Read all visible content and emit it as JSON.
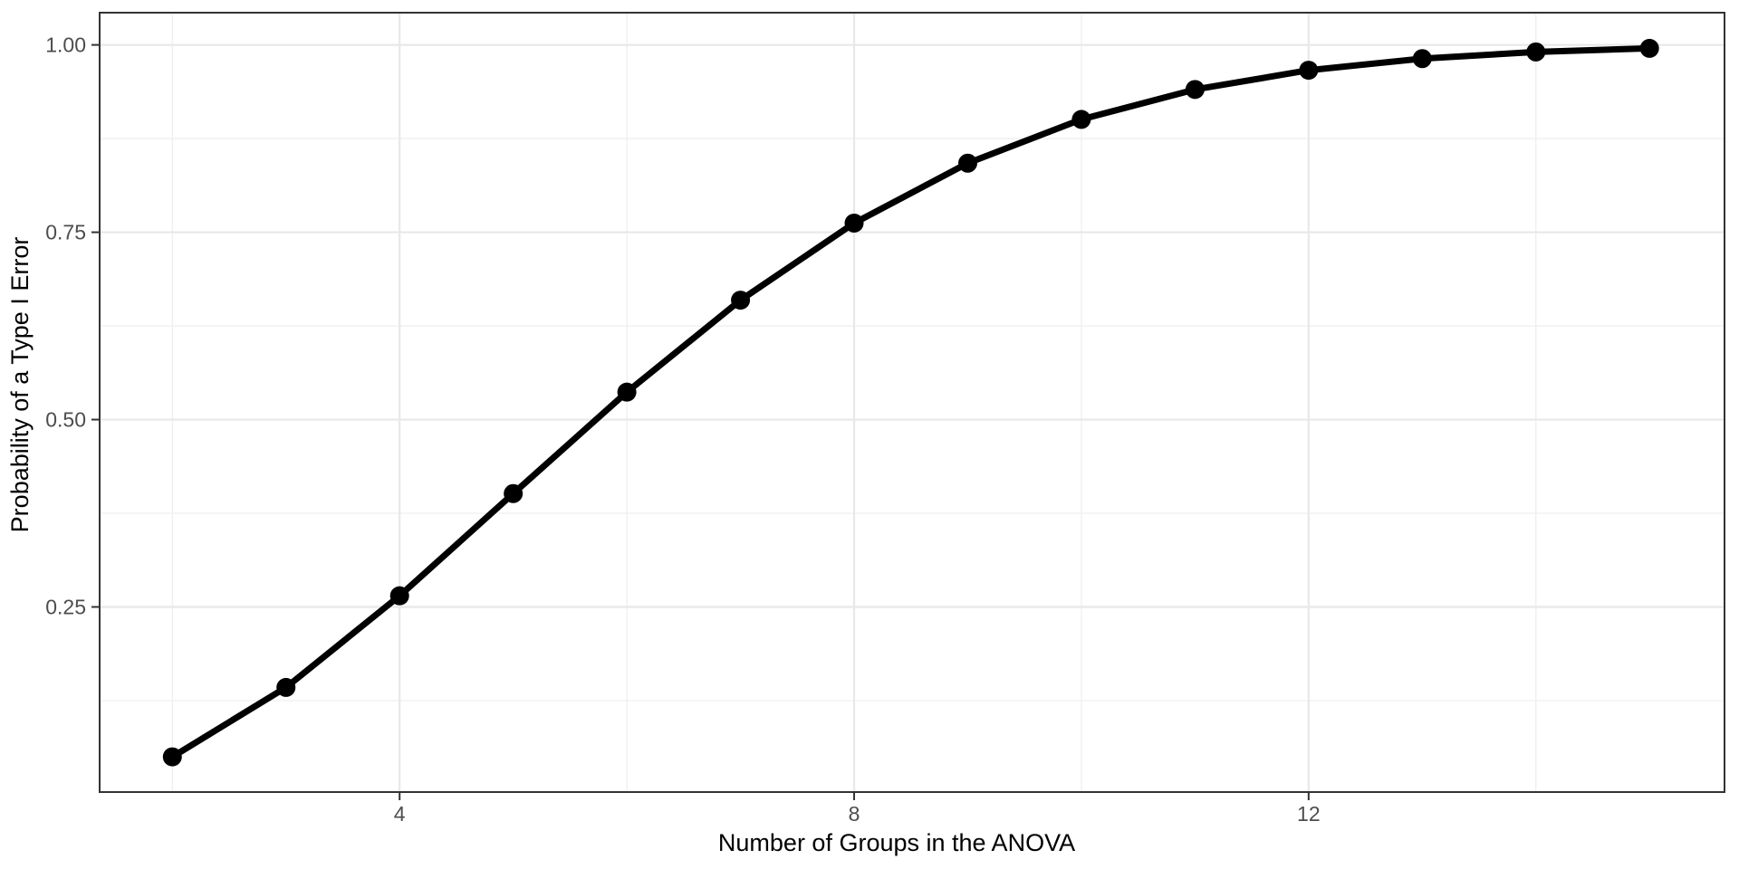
{
  "chart_data": {
    "type": "line",
    "title": "",
    "xlabel": "Number of Groups in the ANOVA",
    "ylabel": "Probability of a Type I Error",
    "x": [
      2,
      3,
      4,
      5,
      6,
      7,
      8,
      9,
      10,
      11,
      12,
      13,
      14,
      15
    ],
    "y": [
      0.05,
      0.1426,
      0.2649,
      0.4013,
      0.5367,
      0.6594,
      0.7622,
      0.8422,
      0.9006,
      0.9405,
      0.9662,
      0.9817,
      0.9906,
      0.9954
    ],
    "x_ticks": [
      4,
      8,
      12
    ],
    "x_tick_labels": [
      "4",
      "8",
      "12"
    ],
    "x_minor": [
      2,
      6,
      10,
      14
    ],
    "y_ticks": [
      0.25,
      0.5,
      0.75,
      1.0
    ],
    "y_tick_labels": [
      "0.25",
      "0.50",
      "0.75",
      "1.00"
    ],
    "y_minor": [
      0.125,
      0.375,
      0.625,
      0.875
    ],
    "xlim": [
      1.36,
      15.66
    ],
    "ylim": [
      0.003,
      1.043
    ],
    "grid": "major-and-minor",
    "legend": "none",
    "colors": {
      "line": "#000000",
      "point": "#000000",
      "grid_major": "#E8E8E8",
      "grid_minor": "#EFEFEF",
      "panel_border": "#333333",
      "tick_mark": "#333333",
      "tick_label": "#4D4D4D",
      "axis_title": "#000000",
      "background": "#FFFFFF"
    }
  }
}
